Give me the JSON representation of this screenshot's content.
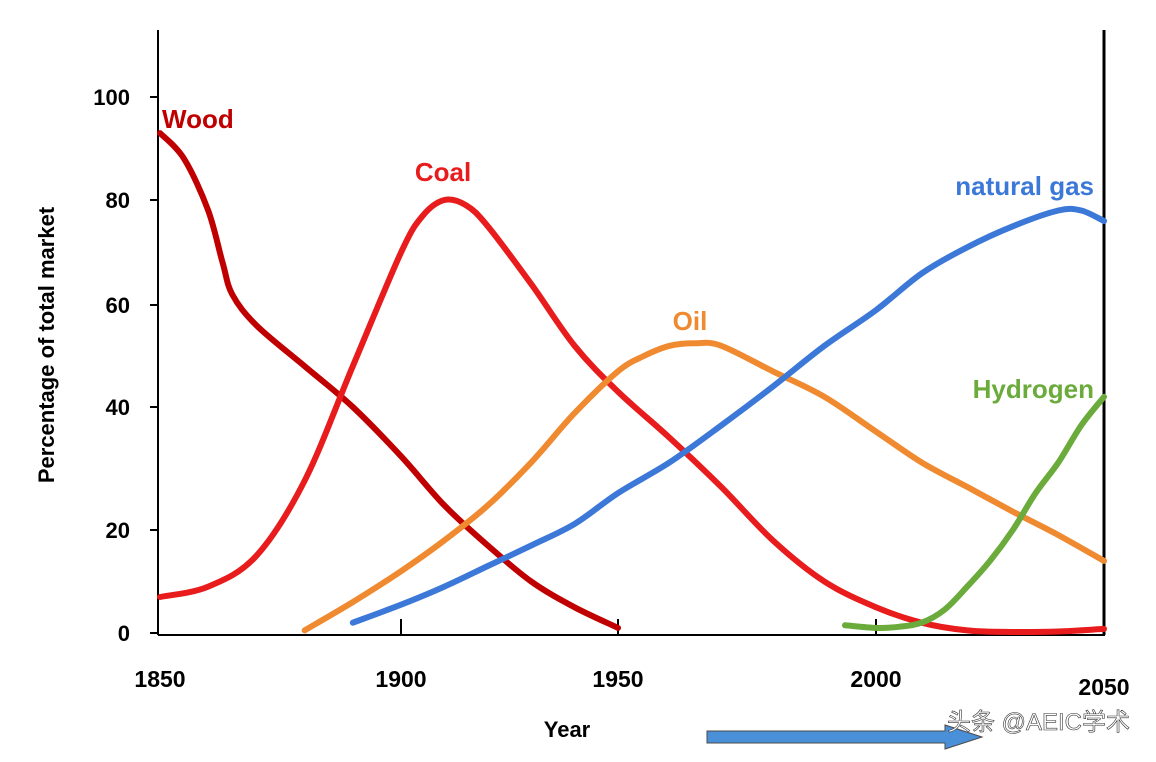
{
  "chart_data": {
    "type": "line",
    "title": "",
    "xlabel": "Year",
    "ylabel": "Percentage of total market",
    "xlim": [
      1850,
      2050
    ],
    "ylim": [
      0,
      110
    ],
    "x_ticks": [
      1850,
      1900,
      1950,
      2000,
      2050
    ],
    "y_ticks": [
      0,
      20,
      40,
      60,
      80,
      100
    ],
    "series": [
      {
        "name": "Wood",
        "color": "#c00000",
        "x": [
          1850,
          1855,
          1860,
          1863,
          1865,
          1870,
          1880,
          1890,
          1900,
          1910,
          1920,
          1930,
          1940,
          1950
        ],
        "values": [
          93,
          88,
          78,
          68,
          62,
          56,
          48,
          40,
          32,
          24,
          17,
          10,
          5,
          1
        ]
      },
      {
        "name": "Coal",
        "color": "#e81c1c",
        "x": [
          1850,
          1860,
          1870,
          1880,
          1890,
          1900,
          1905,
          1910,
          1915,
          1920,
          1930,
          1940,
          1950,
          1960,
          1970,
          1980,
          1990,
          2000,
          2010,
          2020,
          2030,
          2040,
          2050
        ],
        "values": [
          7,
          9,
          15,
          28,
          48,
          70,
          77,
          80,
          79,
          75,
          64,
          52,
          43,
          35,
          27,
          18,
          10,
          5,
          2,
          0.5,
          0.2,
          0.3,
          0.8
        ]
      },
      {
        "name": "Oil",
        "color": "#f08a30",
        "x": [
          1880,
          1890,
          1900,
          1910,
          1920,
          1930,
          1940,
          1950,
          1955,
          1960,
          1965,
          1970,
          1980,
          1990,
          2000,
          2010,
          2020,
          2030,
          2040,
          2050
        ],
        "values": [
          0.5,
          6,
          12,
          18,
          24,
          31,
          39,
          47,
          50,
          52,
          52.5,
          52,
          47,
          42,
          36,
          31,
          27,
          23,
          19,
          14
        ]
      },
      {
        "name": "natural gas",
        "color": "#3c78d8",
        "x": [
          1890,
          1900,
          1910,
          1920,
          1930,
          1940,
          1950,
          1960,
          1970,
          1980,
          1990,
          2000,
          2010,
          2020,
          2030,
          2040,
          2045,
          2050
        ],
        "values": [
          2,
          5.5,
          9,
          13,
          17,
          21,
          26,
          31,
          37,
          44,
          52,
          59,
          66,
          71,
          75,
          78,
          78,
          76
        ]
      },
      {
        "name": "Hydrogen",
        "color": "#6aab3c",
        "x": [
          1994,
          2000,
          2005,
          2010,
          2015,
          2020,
          2025,
          2030,
          2035,
          2040,
          2045,
          2050
        ],
        "values": [
          1.5,
          1.0,
          1.2,
          2.0,
          4.5,
          9,
          14,
          20,
          26,
          31,
          37,
          42
        ]
      }
    ],
    "labels": {
      "Wood": "Wood",
      "Coal": "Coal",
      "Oil": "Oil",
      "natural gas": "natural gas",
      "Hydrogen": "Hydrogen"
    }
  },
  "watermark": "头条 @AEIC学术",
  "arrow_color": "#4a90d9"
}
